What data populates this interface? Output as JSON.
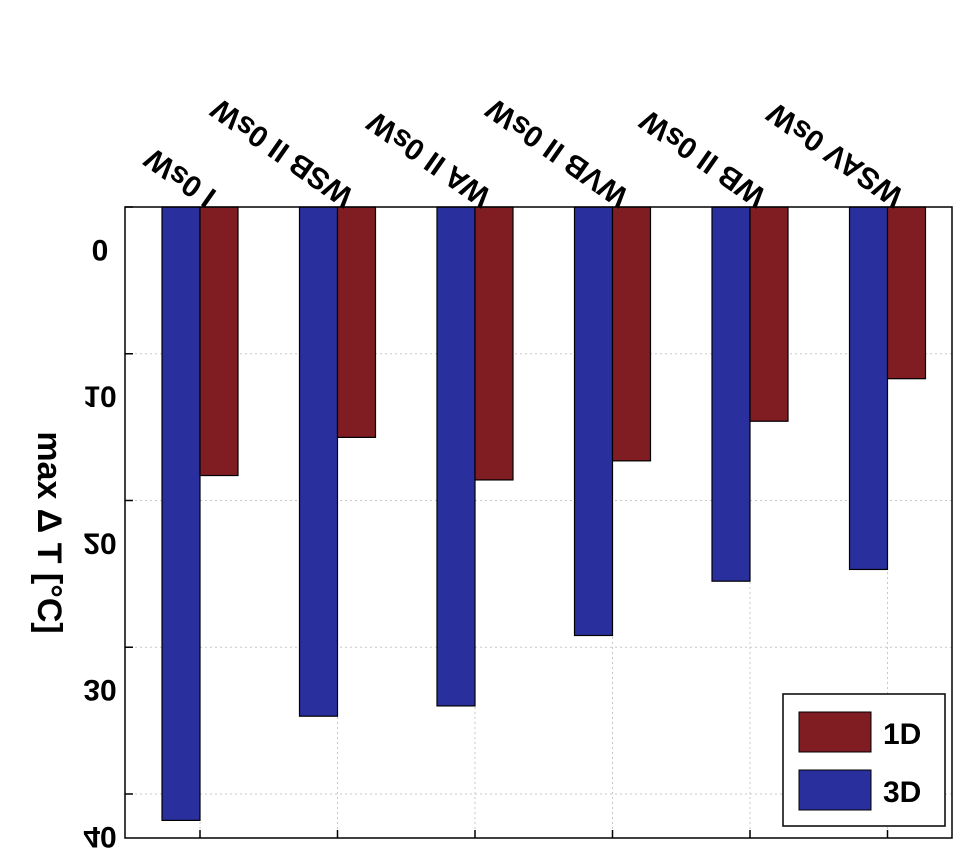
{
  "chart_data": {
    "type": "bar",
    "categories": [
      "I 0sW",
      "WSB II 0sW",
      "WA II 0sW",
      "WVB II 0sW",
      "WB II 0sW",
      "WSAV 0sW"
    ],
    "series": [
      {
        "name": "3D",
        "values": [
          41.8,
          34.7,
          34.0,
          29.2,
          25.5,
          24.7
        ],
        "color": "#2a2f9e"
      },
      {
        "name": "1D",
        "values": [
          18.3,
          15.7,
          18.6,
          17.3,
          14.6,
          11.7
        ],
        "color": "#7f1d23"
      }
    ],
    "ylabel": "max Δ T [°C]",
    "yticks": [
      0,
      10,
      20,
      30,
      40
    ],
    "ylim": [
      0,
      43
    ],
    "grid": true,
    "legend": "bottom-right",
    "orientation": "mirrored"
  }
}
